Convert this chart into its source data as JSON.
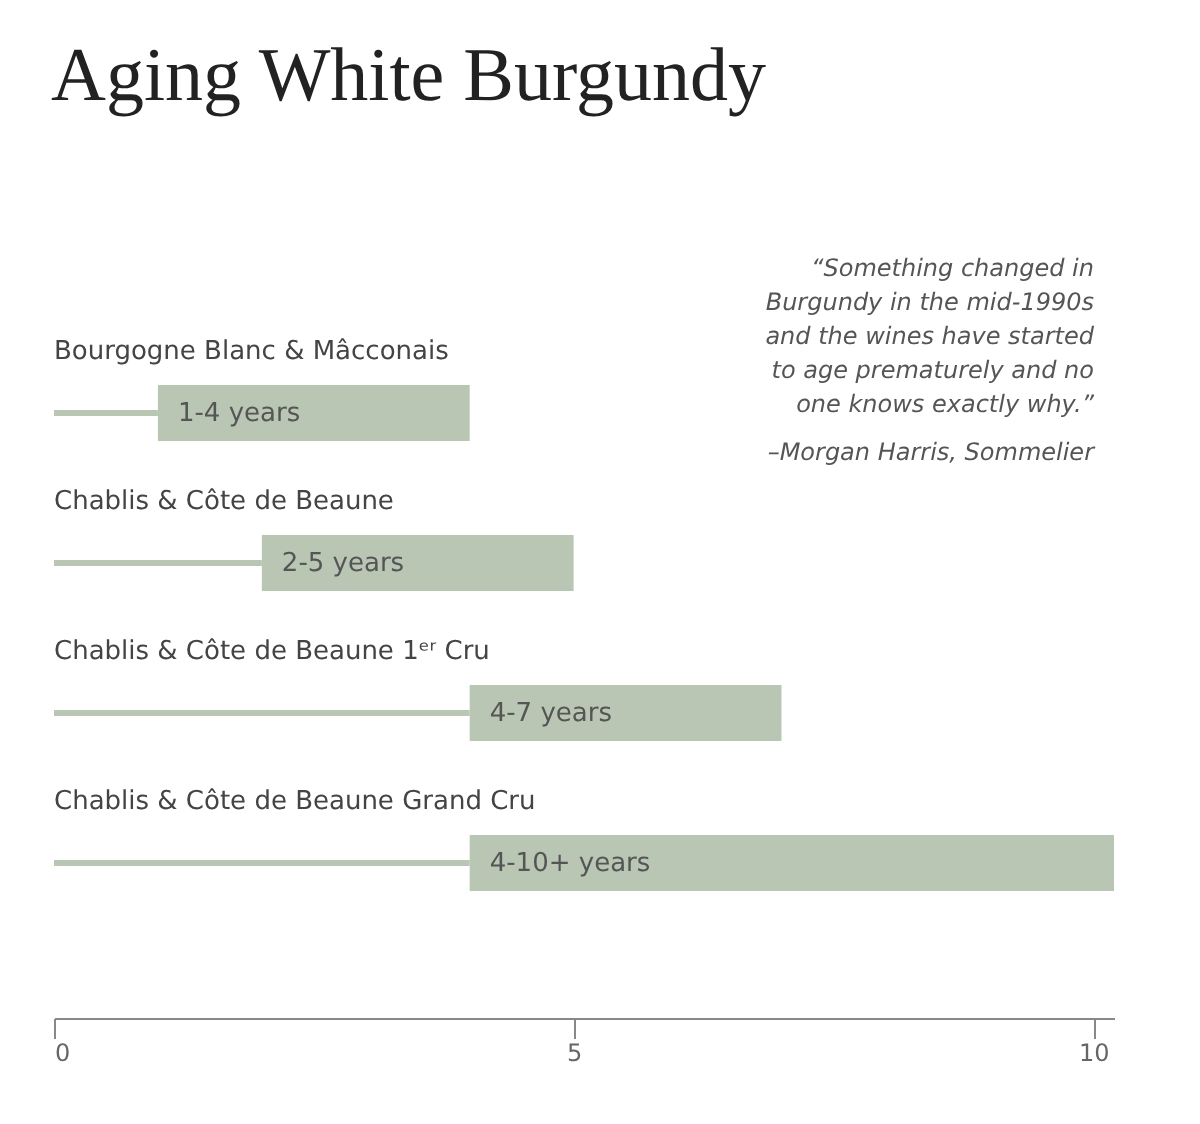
{
  "chart_data": {
    "type": "bar",
    "orientation": "horizontal",
    "title": "Aging White Burgundy",
    "categories": [
      "Bourgogne Blanc & Mâcconais",
      "Chablis & Côte de Beaune",
      "Chablis & Côte de Beaune 1ᵉʳ Cru",
      "Chablis & Côte de Beaune Grand Cru"
    ],
    "base": [
      1,
      2,
      4,
      4
    ],
    "values": [
      3,
      3,
      3,
      6.2
    ],
    "value_labels": [
      "1-4 years",
      "2-5 years",
      "4-7 years",
      "4-10+ years"
    ],
    "color": "#b9c6b4",
    "xlim": [
      0,
      10.2
    ],
    "xticks": [
      0,
      5,
      10
    ],
    "grid": false,
    "annotations": [
      "“Something changed in\nBurgundy in the mid-1990s\nand the wines have started\nto age prematurely and no\none knows exactly why.”",
      "–Morgan Harris, Sommelier"
    ]
  }
}
